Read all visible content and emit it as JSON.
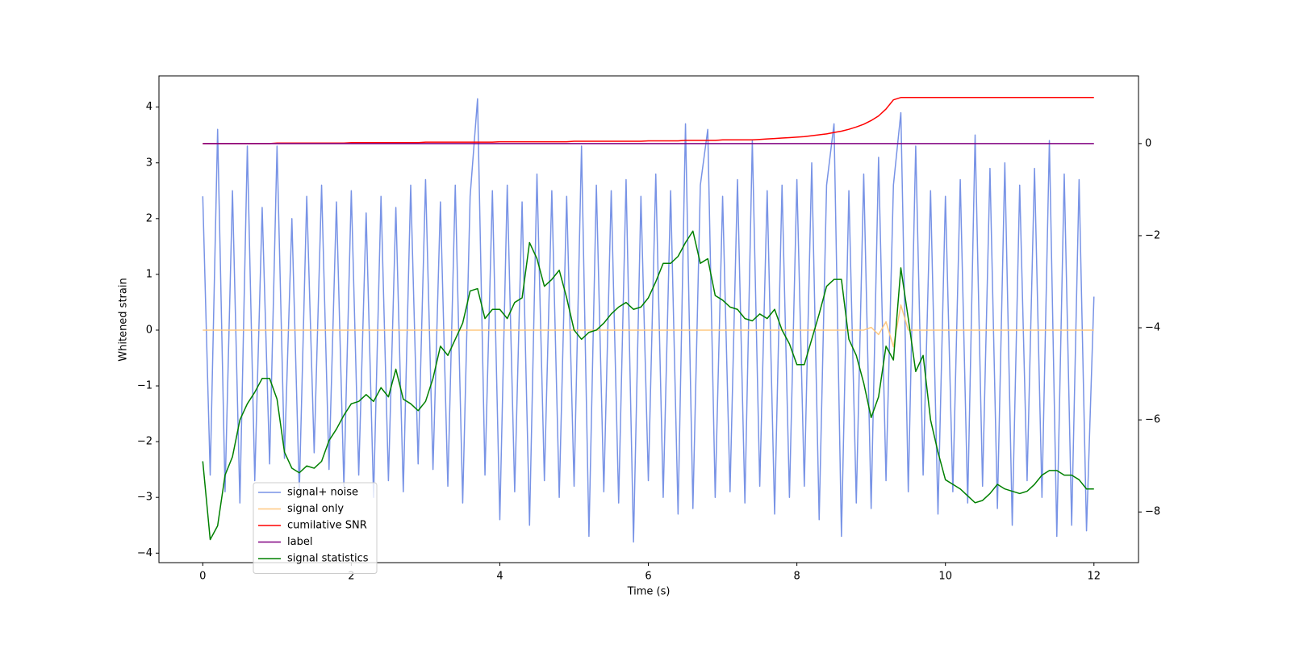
{
  "chart_data": {
    "type": "line",
    "xlabel": "Time (s)",
    "ylabel": "Whitened strain",
    "xlim": [
      -0.59,
      12.6
    ],
    "ylim": [
      -4.17,
      4.56
    ],
    "y2lim": [
      -9.1,
      1.47
    ],
    "xticks": [
      0,
      2,
      4,
      6,
      8,
      10,
      12
    ],
    "yticks": [
      {
        "value": -4,
        "label": "−4"
      },
      {
        "value": -3,
        "label": "−3"
      },
      {
        "value": -2,
        "label": "−2"
      },
      {
        "value": -1,
        "label": "−1"
      },
      0,
      1,
      2,
      3,
      4
    ],
    "y2ticks": [
      {
        "value": -8,
        "label": "−8"
      },
      {
        "value": -6,
        "label": "−6"
      },
      {
        "value": -4,
        "label": "−4"
      },
      {
        "value": -2,
        "label": "−2"
      },
      0
    ],
    "legend": "lower left",
    "x": [
      0,
      0.1,
      0.2,
      0.3,
      0.4,
      0.5,
      0.6,
      0.7,
      0.8,
      0.9,
      1,
      1.1,
      1.2,
      1.3,
      1.4,
      1.5,
      1.6,
      1.7,
      1.8,
      1.9,
      2,
      2.1,
      2.2,
      2.3,
      2.4,
      2.5,
      2.6,
      2.7,
      2.8,
      2.9,
      3,
      3.1,
      3.2,
      3.3,
      3.4,
      3.5,
      3.6,
      3.7,
      3.8,
      3.9,
      4,
      4.1,
      4.2,
      4.3,
      4.4,
      4.5,
      4.6,
      4.7,
      4.8,
      4.9,
      5,
      5.1,
      5.2,
      5.3,
      5.4,
      5.5,
      5.6,
      5.7,
      5.8,
      5.9,
      6,
      6.1,
      6.2,
      6.3,
      6.4,
      6.5,
      6.6,
      6.7,
      6.8,
      6.9,
      7,
      7.1,
      7.2,
      7.3,
      7.4,
      7.5,
      7.6,
      7.7,
      7.8,
      7.9,
      8,
      8.1,
      8.2,
      8.3,
      8.4,
      8.5,
      8.6,
      8.7,
      8.8,
      8.9,
      9,
      9.1,
      9.2,
      9.3,
      9.4,
      9.5,
      9.6,
      9.7,
      9.8,
      9.9,
      10,
      10.1,
      10.2,
      10.3,
      10.4,
      10.5,
      10.6,
      10.7,
      10.8,
      10.9,
      11,
      11.1,
      11.2,
      11.3,
      11.4,
      11.5,
      11.6,
      11.7,
      11.8,
      11.9,
      12
    ],
    "series": [
      {
        "name": "signal+ noise",
        "color": "#7893e6",
        "values": [
          2.4,
          -2.6,
          3.6,
          -2.9,
          2.5,
          -3.1,
          3.3,
          -2.7,
          2.2,
          -2.4,
          3.3,
          -2.3,
          2.0,
          -2.9,
          2.4,
          -2.2,
          2.6,
          -2.5,
          2.3,
          -2.8,
          2.5,
          -2.6,
          2.1,
          -3.0,
          2.4,
          -2.7,
          2.2,
          -2.9,
          2.6,
          -2.4,
          2.7,
          -2.5,
          2.3,
          -2.8,
          2.6,
          -3.1,
          2.4,
          4.15,
          -2.6,
          2.5,
          -3.4,
          2.6,
          -2.9,
          2.3,
          -3.5,
          2.8,
          -2.7,
          2.5,
          -3.0,
          2.4,
          -2.8,
          3.3,
          -3.7,
          2.6,
          -2.9,
          2.5,
          -3.1,
          2.7,
          -3.8,
          2.4,
          -2.7,
          2.8,
          -3.0,
          2.5,
          -3.3,
          3.7,
          -3.2,
          2.6,
          3.6,
          -3.0,
          2.4,
          -2.9,
          2.7,
          -3.1,
          3.4,
          -2.8,
          2.5,
          -3.3,
          2.6,
          -3.0,
          2.7,
          -2.8,
          3.0,
          -3.4,
          2.6,
          3.7,
          -3.7,
          2.5,
          -3.1,
          2.8,
          -3.2,
          3.1,
          -2.7,
          2.6,
          3.9,
          -2.9,
          3.3,
          -2.6,
          2.5,
          -3.3,
          2.4,
          -2.9,
          2.7,
          -3.1,
          3.5,
          -2.8,
          2.9,
          -3.2,
          3.0,
          -3.5,
          2.6,
          -2.7,
          2.9,
          -3.0,
          3.4,
          -3.7,
          2.8,
          -3.5,
          2.7,
          -3.6,
          0.6
        ]
      },
      {
        "name": "signal only",
        "color": "#ffc880",
        "values": [
          0,
          0,
          0,
          0,
          0,
          0,
          0,
          0,
          0,
          0,
          0,
          0,
          0,
          0,
          0,
          0,
          0,
          0,
          0,
          0,
          0,
          0,
          0,
          0,
          0,
          0,
          0,
          0,
          0,
          0,
          0,
          0,
          0,
          0,
          0,
          0,
          0,
          0,
          0,
          0,
          0,
          0,
          0,
          0,
          0,
          0,
          0,
          0,
          0,
          0,
          0,
          0,
          0,
          0,
          0,
          0,
          0,
          0,
          0,
          0,
          0,
          0,
          0,
          0,
          0,
          0,
          0,
          0,
          0,
          0,
          0,
          0,
          0,
          0,
          0,
          0,
          0,
          0,
          0,
          0,
          0,
          0,
          0,
          0,
          0,
          0,
          0,
          0,
          0,
          0,
          0.05,
          -0.08,
          0.15,
          -0.3,
          0.45,
          0,
          0,
          0,
          0,
          0,
          0,
          0,
          0,
          0,
          0,
          0,
          0,
          0,
          0,
          0,
          0,
          0,
          0,
          0,
          0,
          0,
          0,
          0,
          0,
          0,
          0
        ]
      },
      {
        "name": "cumilative SNR",
        "color": "#ff0000",
        "axis": "y2",
        "values": [
          0,
          0,
          0,
          0,
          0,
          0,
          0,
          0,
          0,
          0,
          0.01,
          0.01,
          0.01,
          0.01,
          0.01,
          0.01,
          0.01,
          0.01,
          0.01,
          0.01,
          0.02,
          0.02,
          0.02,
          0.02,
          0.02,
          0.02,
          0.02,
          0.02,
          0.02,
          0.02,
          0.03,
          0.03,
          0.03,
          0.03,
          0.03,
          0.03,
          0.03,
          0.03,
          0.03,
          0.03,
          0.04,
          0.04,
          0.04,
          0.04,
          0.04,
          0.04,
          0.04,
          0.04,
          0.04,
          0.04,
          0.05,
          0.05,
          0.05,
          0.05,
          0.05,
          0.05,
          0.05,
          0.05,
          0.05,
          0.05,
          0.06,
          0.06,
          0.06,
          0.06,
          0.06,
          0.07,
          0.07,
          0.07,
          0.07,
          0.07,
          0.08,
          0.08,
          0.08,
          0.08,
          0.08,
          0.09,
          0.1,
          0.11,
          0.12,
          0.13,
          0.14,
          0.15,
          0.17,
          0.19,
          0.21,
          0.24,
          0.27,
          0.31,
          0.36,
          0.42,
          0.5,
          0.6,
          0.75,
          0.95,
          1.0,
          1.0,
          1.0,
          1.0,
          1.0,
          1.0,
          1.0,
          1.0,
          1.0,
          1.0,
          1.0,
          1.0,
          1.0,
          1.0,
          1.0,
          1.0,
          1.0,
          1.0,
          1.0,
          1.0,
          1.0,
          1.0,
          1.0,
          1.0,
          1.0,
          1.0,
          1.0
        ]
      },
      {
        "name": "label",
        "color": "#800080",
        "axis": "y2",
        "values": [
          0,
          0,
          0,
          0,
          0,
          0,
          0,
          0,
          0,
          0,
          0,
          0,
          0,
          0,
          0,
          0,
          0,
          0,
          0,
          0,
          0,
          0,
          0,
          0,
          0,
          0,
          0,
          0,
          0,
          0,
          0,
          0,
          0,
          0,
          0,
          0,
          0,
          0,
          0,
          0,
          0,
          0,
          0,
          0,
          0,
          0,
          0,
          0,
          0,
          0,
          0,
          0,
          0,
          0,
          0,
          0,
          0,
          0,
          0,
          0,
          0,
          0,
          0,
          0,
          0,
          0,
          0,
          0,
          0,
          0,
          0,
          0,
          0,
          0,
          0,
          0,
          0,
          0,
          0,
          0,
          0,
          0,
          0,
          0,
          0,
          0,
          0,
          0,
          0,
          0,
          0,
          0,
          0,
          0,
          0,
          0,
          0,
          0,
          0,
          0,
          0,
          0,
          0,
          0,
          0,
          0,
          0,
          0,
          0,
          0,
          0,
          0,
          0,
          0,
          0,
          0,
          0,
          0,
          0,
          0,
          0
        ]
      },
      {
        "name": "signal statistics",
        "color": "#008000",
        "axis": "y2",
        "values": [
          -6.9,
          -8.6,
          -8.3,
          -7.2,
          -6.8,
          -6.0,
          -5.65,
          -5.4,
          -5.1,
          -5.1,
          -5.55,
          -6.7,
          -7.05,
          -7.15,
          -7.0,
          -7.05,
          -6.9,
          -6.45,
          -6.2,
          -5.9,
          -5.65,
          -5.6,
          -5.45,
          -5.6,
          -5.3,
          -5.5,
          -4.9,
          -5.55,
          -5.65,
          -5.8,
          -5.6,
          -5.1,
          -4.4,
          -4.6,
          -4.25,
          -3.9,
          -3.2,
          -3.15,
          -3.8,
          -3.6,
          -3.6,
          -3.8,
          -3.45,
          -3.35,
          -2.15,
          -2.5,
          -3.1,
          -2.95,
          -2.75,
          -3.35,
          -4.05,
          -4.25,
          -4.1,
          -4.05,
          -3.9,
          -3.7,
          -3.55,
          -3.45,
          -3.6,
          -3.55,
          -3.35,
          -3.0,
          -2.6,
          -2.6,
          -2.45,
          -2.15,
          -1.9,
          -2.6,
          -2.5,
          -3.3,
          -3.4,
          -3.55,
          -3.6,
          -3.8,
          -3.85,
          -3.7,
          -3.8,
          -3.6,
          -4.05,
          -4.35,
          -4.8,
          -4.8,
          -4.25,
          -3.7,
          -3.1,
          -2.95,
          -2.95,
          -4.25,
          -4.6,
          -5.2,
          -5.95,
          -5.5,
          -4.4,
          -4.7,
          -2.7,
          -3.8,
          -4.95,
          -4.6,
          -6.0,
          -6.7,
          -7.3,
          -7.4,
          -7.5,
          -7.65,
          -7.8,
          -7.75,
          -7.6,
          -7.4,
          -7.5,
          -7.55,
          -7.6,
          -7.55,
          -7.4,
          -7.2,
          -7.1,
          -7.1,
          -7.2,
          -7.2,
          -7.3,
          -7.5,
          -7.5
        ]
      }
    ]
  }
}
